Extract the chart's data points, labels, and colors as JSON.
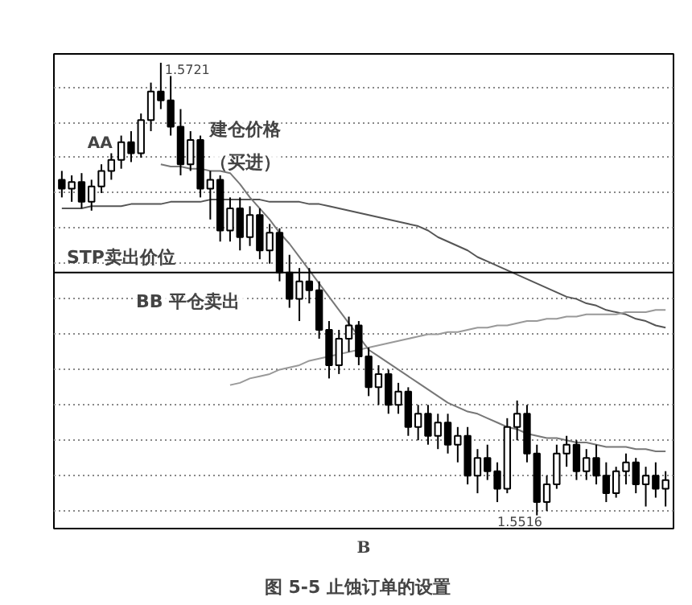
{
  "chart_data": {
    "type": "candlestick",
    "title": "图 5-5   止蚀订单的设置",
    "categories": [
      null,
      null,
      null,
      null,
      null,
      null,
      null,
      null,
      null,
      null,
      null,
      null,
      null,
      null,
      null,
      null,
      null,
      null,
      null,
      null,
      null,
      null,
      null,
      null,
      null,
      null,
      null,
      null,
      null,
      null,
      null,
      null,
      null,
      null,
      null,
      null,
      null,
      null,
      null,
      null,
      null,
      null,
      null,
      null,
      null,
      null,
      null,
      null,
      null,
      null,
      null,
      null,
      null,
      null,
      null,
      null,
      null,
      null,
      null,
      null,
      null,
      null
    ],
    "ohlc": [
      [
        1.5668,
        1.5672,
        1.566,
        1.5664
      ],
      [
        1.5664,
        1.567,
        1.5658,
        1.5667
      ],
      [
        1.5667,
        1.5671,
        1.5655,
        1.5658
      ],
      [
        1.5658,
        1.5668,
        1.5654,
        1.5665
      ],
      [
        1.5665,
        1.5675,
        1.5662,
        1.5672
      ],
      [
        1.5672,
        1.568,
        1.5668,
        1.5677
      ],
      [
        1.5677,
        1.5688,
        1.5673,
        1.5685
      ],
      [
        1.5685,
        1.569,
        1.5676,
        1.568
      ],
      [
        1.568,
        1.5698,
        1.5678,
        1.5695
      ],
      [
        1.5695,
        1.5712,
        1.569,
        1.5708
      ],
      [
        1.5708,
        1.5721,
        1.57,
        1.5704
      ],
      [
        1.5704,
        1.5715,
        1.5688,
        1.5692
      ],
      [
        1.5692,
        1.57,
        1.567,
        1.5675
      ],
      [
        1.5675,
        1.569,
        1.5672,
        1.5686
      ],
      [
        1.5686,
        1.5688,
        1.566,
        1.5664
      ],
      [
        1.5664,
        1.5672,
        1.565,
        1.5668
      ],
      [
        1.5668,
        1.567,
        1.564,
        1.5645
      ],
      [
        1.5645,
        1.566,
        1.564,
        1.5655
      ],
      [
        1.5655,
        1.566,
        1.5636,
        1.5642
      ],
      [
        1.5642,
        1.5656,
        1.5638,
        1.5652
      ],
      [
        1.5652,
        1.5655,
        1.5632,
        1.5636
      ],
      [
        1.5636,
        1.5648,
        1.563,
        1.5644
      ],
      [
        1.5644,
        1.5646,
        1.5622,
        1.5626
      ],
      [
        1.5626,
        1.5634,
        1.561,
        1.5614
      ],
      [
        1.5614,
        1.5628,
        1.5604,
        1.5622
      ],
      [
        1.5622,
        1.5628,
        1.5612,
        1.5618
      ],
      [
        1.5618,
        1.5622,
        1.5596,
        1.56
      ],
      [
        1.56,
        1.5604,
        1.5578,
        1.5584
      ],
      [
        1.5584,
        1.56,
        1.558,
        1.5596
      ],
      [
        1.5596,
        1.5606,
        1.559,
        1.5602
      ],
      [
        1.5602,
        1.5604,
        1.5584,
        1.5588
      ],
      [
        1.5588,
        1.5592,
        1.557,
        1.5574
      ],
      [
        1.5574,
        1.5584,
        1.5566,
        1.558
      ],
      [
        1.558,
        1.5582,
        1.5562,
        1.5566
      ],
      [
        1.5566,
        1.5576,
        1.5562,
        1.5572
      ],
      [
        1.5572,
        1.5574,
        1.5552,
        1.5556
      ],
      [
        1.5556,
        1.5566,
        1.555,
        1.5562
      ],
      [
        1.5562,
        1.5566,
        1.5548,
        1.5552
      ],
      [
        1.5552,
        1.5562,
        1.5546,
        1.5558
      ],
      [
        1.5558,
        1.5562,
        1.5544,
        1.5548
      ],
      [
        1.5548,
        1.5556,
        1.554,
        1.5552
      ],
      [
        1.5552,
        1.5556,
        1.553,
        1.5534
      ],
      [
        1.5534,
        1.5546,
        1.5526,
        1.5542
      ],
      [
        1.5542,
        1.5548,
        1.5532,
        1.5536
      ],
      [
        1.5536,
        1.554,
        1.5522,
        1.5528
      ],
      [
        1.5528,
        1.556,
        1.5526,
        1.5556
      ],
      [
        1.5556,
        1.5568,
        1.555,
        1.5562
      ],
      [
        1.5562,
        1.5566,
        1.554,
        1.5544
      ],
      [
        1.5544,
        1.5548,
        1.5516,
        1.5522
      ],
      [
        1.5522,
        1.5534,
        1.5518,
        1.553
      ],
      [
        1.553,
        1.5548,
        1.5528,
        1.5544
      ],
      [
        1.5544,
        1.5552,
        1.5538,
        1.5548
      ],
      [
        1.5548,
        1.555,
        1.5532,
        1.5536
      ],
      [
        1.5536,
        1.5546,
        1.5532,
        1.5542
      ],
      [
        1.5542,
        1.5548,
        1.553,
        1.5534
      ],
      [
        1.5534,
        1.554,
        1.5522,
        1.5526
      ],
      [
        1.5526,
        1.5538,
        1.5524,
        1.5536
      ],
      [
        1.5536,
        1.5544,
        1.553,
        1.554
      ],
      [
        1.554,
        1.5542,
        1.5526,
        1.553
      ],
      [
        1.553,
        1.5538,
        1.552,
        1.5534
      ],
      [
        1.5534,
        1.554,
        1.5524,
        1.5528
      ],
      [
        1.5528,
        1.5536,
        1.552,
        1.5532
      ]
    ],
    "series": [
      {
        "type": "line",
        "color": "#555555",
        "values": [
          1.5655,
          1.5655,
          1.5655,
          1.5656,
          1.5656,
          1.5656,
          1.5656,
          1.5657,
          1.5657,
          1.5657,
          1.5657,
          1.5658,
          1.5658,
          1.5658,
          1.5658,
          1.5659,
          1.5659,
          1.5659,
          1.5659,
          1.5659,
          1.5659,
          1.5658,
          1.5658,
          1.5658,
          1.5658,
          1.5657,
          1.5657,
          1.5656,
          1.5655,
          1.5654,
          1.5653,
          1.5652,
          1.5651,
          1.565,
          1.5649,
          1.5648,
          1.5647,
          1.5645,
          1.5642,
          1.564,
          1.5638,
          1.5636,
          1.5633,
          1.5631,
          1.5629,
          1.5627,
          1.5625,
          1.5623,
          1.5621,
          1.5619,
          1.5617,
          1.5615,
          1.5614,
          1.5612,
          1.5611,
          1.5609,
          1.5608,
          1.5607,
          1.5605,
          1.5604,
          1.5602,
          1.5601
        ]
      },
      {
        "type": "line",
        "color": "#999999",
        "values": [
          null,
          null,
          null,
          null,
          null,
          null,
          null,
          null,
          null,
          null,
          null,
          null,
          null,
          null,
          null,
          null,
          null,
          1.5575,
          1.5576,
          1.5578,
          1.5579,
          1.558,
          1.5582,
          1.5583,
          1.5584,
          1.5586,
          1.5587,
          1.5588,
          1.5589,
          1.559,
          1.5591,
          1.5592,
          1.5593,
          1.5594,
          1.5595,
          1.5596,
          1.5597,
          1.5598,
          1.5598,
          1.5599,
          1.5599,
          1.56,
          1.5601,
          1.5601,
          1.5602,
          1.5602,
          1.5603,
          1.5604,
          1.5604,
          1.5605,
          1.5605,
          1.5606,
          1.5606,
          1.5607,
          1.5607,
          1.5607,
          1.5607,
          1.5608,
          1.5608,
          1.5608,
          1.5609,
          1.5609
        ]
      },
      {
        "type": "line",
        "color": "#777777",
        "values": [
          null,
          null,
          null,
          null,
          null,
          null,
          null,
          null,
          null,
          null,
          1.5675,
          1.5674,
          1.5674,
          1.5673,
          1.5673,
          1.5672,
          1.5672,
          1.5671,
          1.5666,
          1.566,
          1.5655,
          1.565,
          1.5644,
          1.5639,
          1.5633,
          1.5627,
          1.5621,
          1.5615,
          1.5609,
          1.5603,
          1.5597,
          1.5591,
          1.5588,
          1.5585,
          1.5582,
          1.5579,
          1.5576,
          1.5573,
          1.557,
          1.5567,
          1.5565,
          1.5563,
          1.5562,
          1.556,
          1.5558,
          1.5556,
          1.5555,
          1.5553,
          1.5552,
          1.5551,
          1.5551,
          1.555,
          1.5549,
          1.5549,
          1.5548,
          1.5547,
          1.5547,
          1.5547,
          1.5546,
          1.5546,
          1.5545,
          1.5545
        ]
      }
    ],
    "ylim": [
      1.551,
      1.5725
    ],
    "yticks": [
      {
        "value": 1.571,
        "label": null
      },
      {
        "value": 1.5694,
        "label": null
      },
      {
        "value": 1.5678,
        "label": null
      },
      {
        "value": 1.5662,
        "label": null
      },
      {
        "value": 1.5646,
        "label": null
      },
      {
        "value": 1.563,
        "label": null
      },
      {
        "value": 1.5614,
        "label": null
      },
      {
        "value": 1.5598,
        "label": null
      },
      {
        "value": 1.5582,
        "label": null
      },
      {
        "value": 1.5566,
        "label": null
      },
      {
        "value": 1.555,
        "label": null
      },
      {
        "value": 1.5534,
        "label": null
      },
      {
        "value": 1.5518,
        "label": null
      }
    ],
    "grid": "y",
    "tick_labels": false,
    "ref_lines": [
      {
        "axis": "y",
        "value": 1.5626,
        "label": "STP卖出价位"
      }
    ],
    "annotations": [
      "1.5721",
      "1.5516",
      "AA",
      "建仓价格",
      "（买进）",
      "BB  平仓卖出",
      "B"
    ]
  }
}
